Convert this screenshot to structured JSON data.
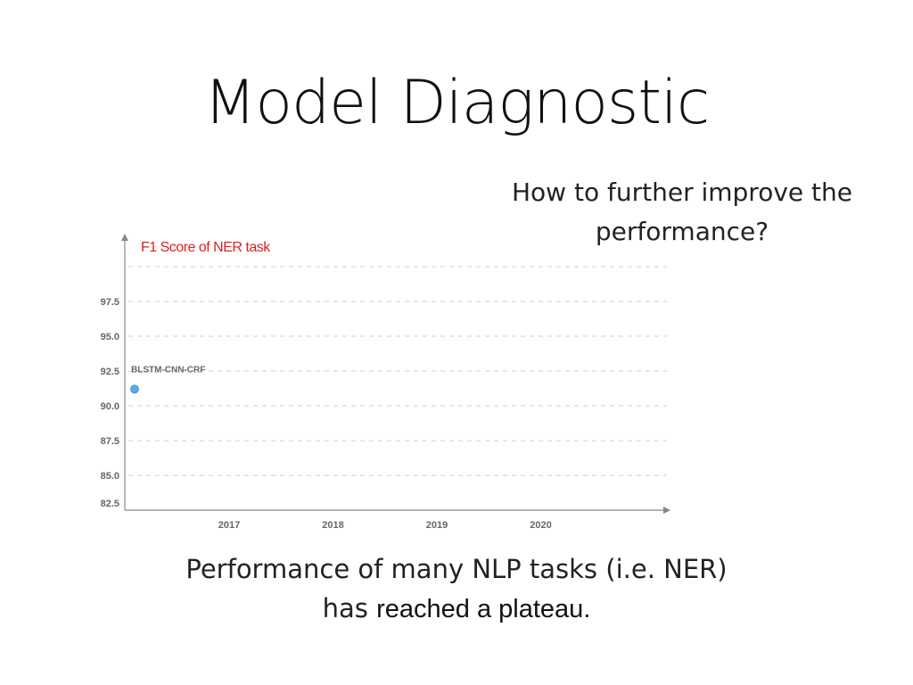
{
  "slide": {
    "title": "Model Diagnostic",
    "question": "How to further improve the performance?",
    "caption_line1": "Performance of many NLP tasks (i.e. NER)",
    "caption_line2_prefix": "has ",
    "caption_line2_emphasis": "reached a plateau."
  },
  "chart_data": {
    "type": "scatter",
    "title": "F1 Score of NER task",
    "title_color": "#e02020",
    "x_ticks": [
      "2017",
      "2018",
      "2019",
      "2020"
    ],
    "y_ticks": [
      "82.5",
      "85.0",
      "87.5",
      "90.0",
      "92.5",
      "95.0",
      "97.5"
    ],
    "ylim": [
      82.5,
      97.5
    ],
    "grid": true,
    "point_color": "#5aa9f0",
    "points": [
      {
        "x": "2016",
        "y": 91.2,
        "label": "BLSTM-CNN-CRF"
      }
    ]
  }
}
